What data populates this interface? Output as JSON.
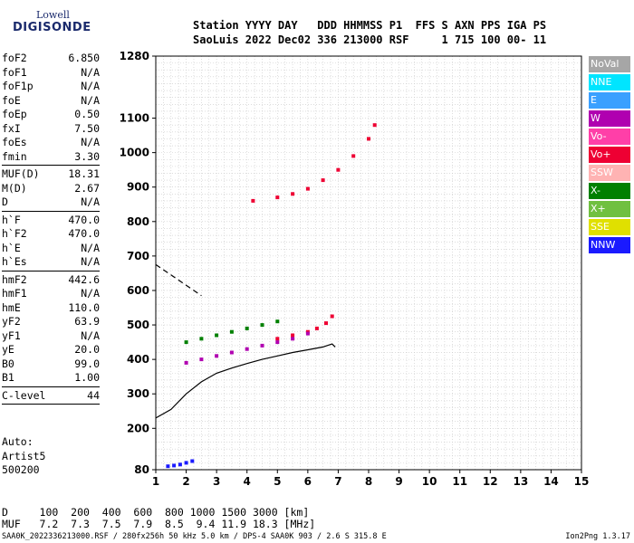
{
  "logo": {
    "line1": "Lowell",
    "line2": "DIGISONDE"
  },
  "header": {
    "line1": "Station YYYY DAY   DDD HHMMSS P1  FFS S AXN PPS IGA PS",
    "line2": "SaoLuis 2022 Dec02 336 213000 RSF     1 715 100 00- 11"
  },
  "params": [
    {
      "k": "foF2",
      "v": "6.850"
    },
    {
      "k": "foF1",
      "v": "N/A"
    },
    {
      "k": "foF1p",
      "v": "N/A"
    },
    {
      "k": "foE",
      "v": "N/A"
    },
    {
      "k": "foEp",
      "v": "0.50"
    },
    {
      "k": "fxI",
      "v": "7.50"
    },
    {
      "k": "foEs",
      "v": "N/A"
    },
    {
      "k": "fmin",
      "v": "3.30",
      "sep": true
    },
    {
      "k": "MUF(D)",
      "v": "18.31"
    },
    {
      "k": "M(D)",
      "v": "2.67"
    },
    {
      "k": "D",
      "v": "N/A",
      "sep": true
    },
    {
      "k": "h`F",
      "v": "470.0"
    },
    {
      "k": "h`F2",
      "v": "470.0"
    },
    {
      "k": "h`E",
      "v": "N/A"
    },
    {
      "k": "h`Es",
      "v": "N/A",
      "sep": true
    },
    {
      "k": "hmF2",
      "v": "442.6"
    },
    {
      "k": "hmF1",
      "v": "N/A"
    },
    {
      "k": "hmE",
      "v": "110.0"
    },
    {
      "k": "yF2",
      "v": "63.9"
    },
    {
      "k": "yF1",
      "v": "N/A"
    },
    {
      "k": "yE",
      "v": "20.0"
    },
    {
      "k": "B0",
      "v": "99.0"
    },
    {
      "k": "B1",
      "v": "1.00",
      "sep": true
    },
    {
      "k": "C-level",
      "v": "44",
      "sep": true
    }
  ],
  "auto": [
    "Auto:",
    "Artist5",
    "500200"
  ],
  "muf_table": {
    "line1": "D     100  200  400  600  800 1000 1500 3000 [km]",
    "line2": "MUF   7.2  7.3  7.5  7.9  8.5  9.4 11.9 18.3 [MHz]"
  },
  "footer": {
    "left": "SAA0K_2022336213000.RSF / 280fx256h 50 kHz 5.0 km / DPS-4 SAA0K 903 / 2.6 S 315.8 E",
    "right": "Ion2Png 1.3.17"
  },
  "legend": [
    {
      "label": "NoVal",
      "color": "#a6a6a6"
    },
    {
      "label": "NNE",
      "color": "#00e5ff"
    },
    {
      "label": "E",
      "color": "#3aa0ff"
    },
    {
      "label": "W",
      "color": "#b000b0"
    },
    {
      "label": "Vo-",
      "color": "#ff3fa8"
    },
    {
      "label": "Vo+",
      "color": "#ee0033"
    },
    {
      "label": "SSW",
      "color": "#ffb3b3"
    },
    {
      "label": "X-",
      "color": "#008000"
    },
    {
      "label": "X+",
      "color": "#70c040"
    },
    {
      "label": "SSE",
      "color": "#e0e000"
    },
    {
      "label": "NNW",
      "color": "#1a1aff"
    }
  ],
  "chart_data": {
    "type": "scatter",
    "xlim": [
      1,
      15
    ],
    "ylim": [
      80,
      1280
    ],
    "xticks": [
      1,
      2,
      3,
      4,
      5,
      6,
      7,
      8,
      9,
      10,
      11,
      12,
      13,
      14,
      15
    ],
    "yticks": [
      80,
      200,
      300,
      400,
      500,
      600,
      700,
      800,
      900,
      1000,
      1100,
      1280
    ],
    "grid": true,
    "profile_solid": [
      [
        1,
        230
      ],
      [
        1.5,
        255
      ],
      [
        2,
        300
      ],
      [
        2.5,
        335
      ],
      [
        3,
        360
      ],
      [
        3.5,
        375
      ],
      [
        4,
        388
      ],
      [
        4.5,
        400
      ],
      [
        5,
        410
      ],
      [
        5.5,
        420
      ],
      [
        6,
        428
      ],
      [
        6.5,
        436
      ],
      [
        6.8,
        445
      ],
      [
        6.9,
        436
      ]
    ],
    "profile_dashed": [
      [
        1,
        675
      ],
      [
        1.5,
        645
      ],
      [
        2,
        615
      ],
      [
        2.5,
        585
      ]
    ],
    "traces": [
      {
        "series": "Vo+",
        "points": [
          [
            5,
            460
          ],
          [
            5.5,
            470
          ],
          [
            6,
            480
          ],
          [
            6.3,
            490
          ],
          [
            6.6,
            505
          ],
          [
            6.8,
            525
          ]
        ]
      },
      {
        "series": "W",
        "points": [
          [
            2,
            390
          ],
          [
            2.5,
            400
          ],
          [
            3,
            410
          ],
          [
            3.5,
            420
          ],
          [
            4,
            430
          ],
          [
            4.5,
            440
          ],
          [
            5,
            450
          ],
          [
            5.5,
            460
          ],
          [
            6,
            475
          ]
        ]
      },
      {
        "series": "X-",
        "points": [
          [
            2,
            450
          ],
          [
            2.5,
            460
          ],
          [
            3,
            470
          ],
          [
            3.5,
            480
          ],
          [
            4,
            490
          ],
          [
            4.5,
            500
          ],
          [
            5,
            510
          ]
        ]
      },
      {
        "series": "Vo+",
        "points": [
          [
            4.2,
            860
          ],
          [
            5,
            870
          ],
          [
            5.5,
            880
          ],
          [
            6,
            895
          ],
          [
            6.5,
            920
          ],
          [
            7,
            950
          ],
          [
            7.5,
            990
          ],
          [
            8,
            1040
          ],
          [
            8.2,
            1080
          ]
        ]
      },
      {
        "series": "NNW",
        "points": [
          [
            1.4,
            90
          ],
          [
            1.6,
            92
          ],
          [
            1.8,
            95
          ],
          [
            2,
            100
          ],
          [
            2.2,
            105
          ]
        ]
      }
    ]
  }
}
